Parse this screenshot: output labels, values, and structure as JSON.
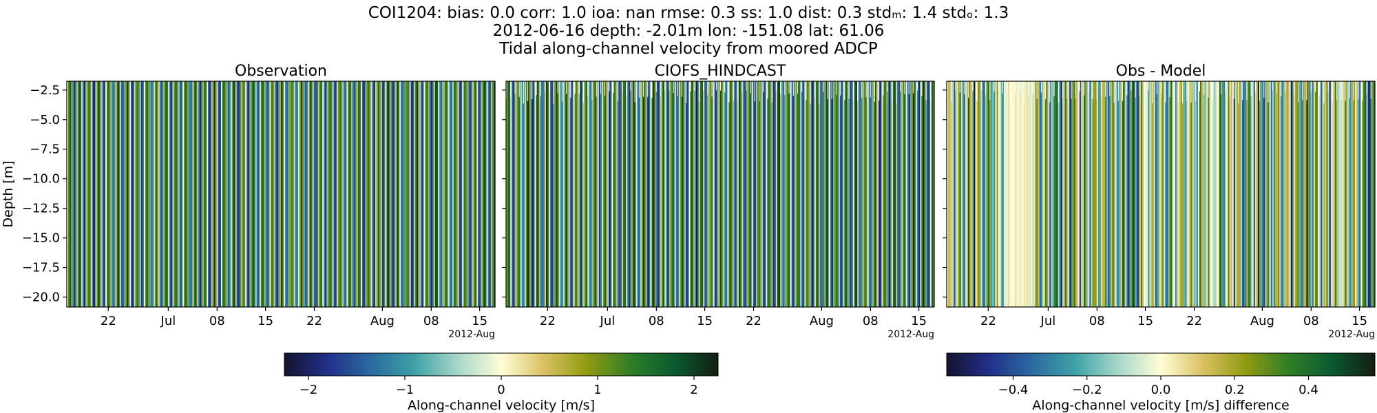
{
  "title": {
    "line1": "COI1204: bias: 0.0  corr: 1.0  ioa: nan  rmse: 0.3  ss: 1.0  dist: 0.3  stdₘ: 1.4  stdₒ: 1.3",
    "line2": "2012-06-16 depth: -2.01m lon: -151.08 lat: 61.06",
    "line3": "Tidal along-channel velocity from moored ADCP"
  },
  "chart_data": [
    {
      "type": "heatmap",
      "title": "Observation",
      "ylabel": "Depth [m]",
      "yticks": [
        "−2.5",
        "−5.0",
        "−7.5",
        "−10.0",
        "−12.5",
        "−15.0",
        "−17.5",
        "−20.0"
      ],
      "xticks": [
        "22",
        "Jul",
        "08",
        "15",
        "22",
        "Aug",
        "08",
        "15"
      ],
      "xoffset_label": "2012-Aug",
      "ylim": [
        -20.6,
        -1.5
      ],
      "xrange": [
        "2012-06-16",
        "2012-08-18"
      ],
      "colormap": "delta",
      "clim": [
        -2.25,
        2.25
      ]
    },
    {
      "type": "heatmap",
      "title": "CIOFS_HINDCAST",
      "xticks": [
        "22",
        "Jul",
        "08",
        "15",
        "22",
        "Aug",
        "08",
        "15"
      ],
      "xoffset_label": "2012-Aug",
      "ylim": [
        -20.6,
        -1.5
      ],
      "xrange": [
        "2012-06-16",
        "2012-08-18"
      ],
      "colormap": "delta",
      "clim": [
        -2.25,
        2.25
      ]
    },
    {
      "type": "heatmap",
      "title": "Obs - Model",
      "xticks": [
        "22",
        "Jul",
        "08",
        "15",
        "22",
        "Aug",
        "08",
        "15"
      ],
      "xoffset_label": "2012-Aug",
      "ylim": [
        -20.6,
        -1.5
      ],
      "xrange": [
        "2012-06-16",
        "2012-08-18"
      ],
      "colormap": "delta",
      "clim": [
        -0.58,
        0.58
      ]
    }
  ],
  "colorbars": [
    {
      "label": "Along-channel velocity [m/s]",
      "ticks": [
        "−2",
        "−1",
        "0",
        "1",
        "2"
      ],
      "tick_values": [
        -2,
        -1,
        0,
        1,
        2
      ],
      "range": [
        -2.25,
        2.25
      ]
    },
    {
      "label": "Along-channel velocity [m/s] difference",
      "ticks": [
        "−0.4",
        "−0.2",
        "0.0",
        "0.2",
        "0.4"
      ],
      "tick_values": [
        -0.4,
        -0.2,
        0.0,
        0.2,
        0.4
      ],
      "range": [
        -0.58,
        0.58
      ]
    }
  ],
  "colormap_stops": [
    "#14142e",
    "#22308a",
    "#2c6aa0",
    "#3fa2a8",
    "#a6d7c9",
    "#fffdd6",
    "#d8c060",
    "#8f9a10",
    "#307e28",
    "#0a5a30",
    "#141e12"
  ]
}
